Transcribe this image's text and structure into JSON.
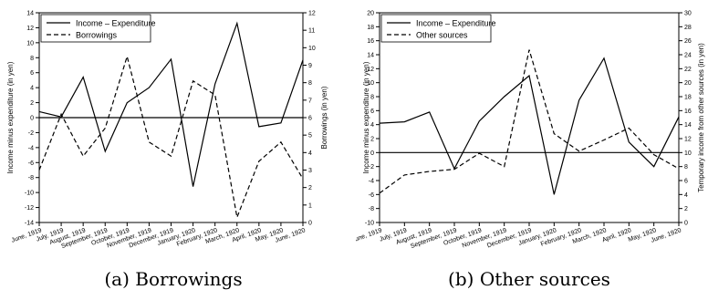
{
  "chart_data": [
    {
      "type": "line",
      "categories": [
        "June, 1919",
        "July, 1919",
        "August, 1919",
        "September, 1919",
        "October, 1919",
        "November, 1919",
        "December, 1919",
        "January, 1920",
        "February, 1920",
        "March, 1920",
        "April, 1920",
        "May, 1920",
        "June, 1920"
      ],
      "series": [
        {
          "name": "Income – Expenditure",
          "axis": "left",
          "style": "solid",
          "values": [
            0.8,
            0.1,
            5.4,
            -4.5,
            2.0,
            4.0,
            7.8,
            -9.2,
            4.5,
            12.6,
            -1.2,
            -0.7,
            7.7
          ]
        },
        {
          "name": "Borrowings",
          "axis": "right",
          "style": "dashed",
          "values": [
            3.0,
            6.2,
            3.8,
            5.4,
            9.5,
            4.6,
            3.8,
            8.1,
            7.3,
            0.3,
            3.5,
            4.6,
            2.5
          ]
        }
      ],
      "ylabel": "Income minus expenditure (in yen)",
      "ylabel_right": "Borrowings (in yen)",
      "ylim": [
        -14,
        14
      ],
      "yticks": [
        "-14",
        "-12",
        "-10",
        "-8",
        "-6",
        "-4",
        "-2",
        "0",
        "2",
        "4",
        "6",
        "8",
        "10",
        "12",
        "14"
      ],
      "ylim_right": [
        0,
        12
      ],
      "yticks_right": [
        "0",
        "1",
        "2",
        "3",
        "4",
        "5",
        "6",
        "7",
        "8",
        "9",
        "10",
        "11",
        "12"
      ],
      "zero_line": 0,
      "grid": false,
      "legend_position": "top-left",
      "caption": "(a) Borrowings"
    },
    {
      "type": "line",
      "categories": [
        "June, 1919",
        "July, 1919",
        "August, 1919",
        "September, 1919",
        "October, 1919",
        "November, 1919",
        "December, 1919",
        "January, 1920",
        "February, 1920",
        "March, 1920",
        "April, 1920",
        "May, 1920",
        "June, 1920"
      ],
      "series": [
        {
          "name": "Income – Expenditure",
          "axis": "left",
          "style": "solid",
          "values": [
            4.2,
            4.4,
            5.8,
            -2.3,
            4.5,
            8.0,
            11.0,
            -6.0,
            7.5,
            13.5,
            1.5,
            -2.0,
            5.1
          ]
        },
        {
          "name": "Other sources",
          "axis": "right",
          "style": "dashed",
          "values": [
            4.2,
            6.8,
            7.3,
            7.6,
            9.9,
            8.0,
            24.7,
            12.7,
            10.2,
            11.8,
            13.5,
            9.7,
            7.7
          ]
        }
      ],
      "ylabel": "Income minus expenditure (in yen)",
      "ylabel_right": "Temporary income from other sources (in yen)",
      "ylim": [
        -10,
        20
      ],
      "yticks": [
        "-10",
        "-8",
        "-6",
        "-4",
        "-2",
        "0",
        "2",
        "4",
        "6",
        "8",
        "10",
        "12",
        "14",
        "16",
        "18",
        "20"
      ],
      "ylim_right": [
        0,
        30
      ],
      "yticks_right": [
        "0",
        "2",
        "4",
        "6",
        "8",
        "10",
        "12",
        "14",
        "16",
        "18",
        "20",
        "22",
        "24",
        "26",
        "28",
        "30"
      ],
      "zero_line": 0,
      "grid": false,
      "legend_position": "top-left",
      "caption": "(b) Other sources"
    }
  ]
}
